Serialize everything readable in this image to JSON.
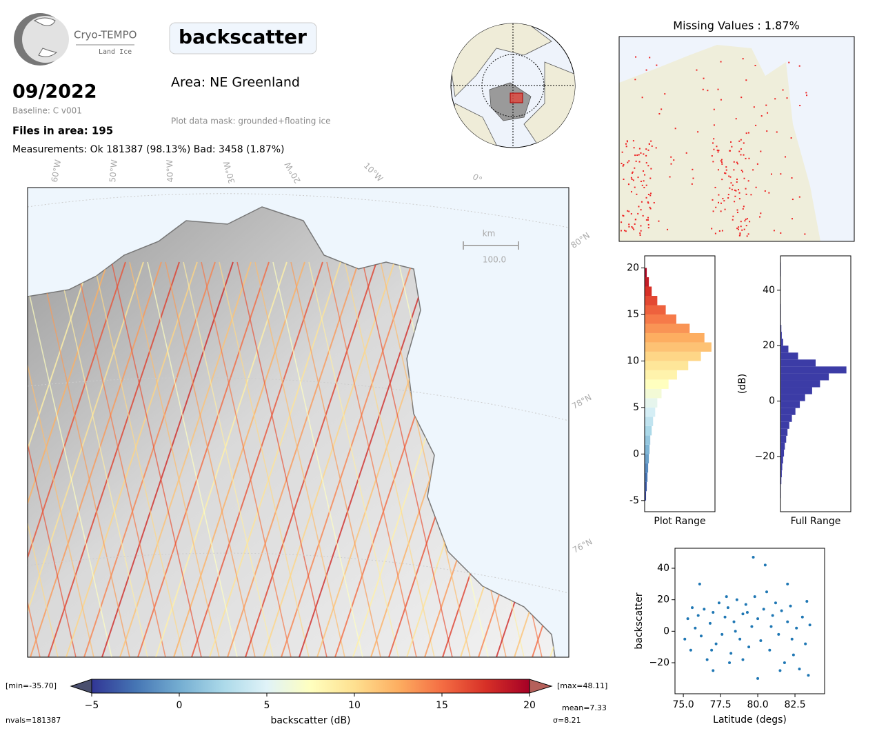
{
  "header": {
    "logo_title": "Cryo-TEMPO",
    "logo_subtitle": "Land Ice",
    "date": "09/2022",
    "baseline": "Baseline: C v001",
    "files": "Files in area: 195",
    "measurements": "Measurements: Ok 181387 (98.13%) Bad: 3458 (1.87%)",
    "title": "backscatter",
    "area": "Area: NE Greenland",
    "mask": "Plot data mask: grounded+floating ice"
  },
  "map": {
    "lon_labels": [
      "60°W",
      "50°W",
      "40°W",
      "30°W",
      "20°W",
      "10°W",
      "0°"
    ],
    "lat_labels": [
      "80°N",
      "78°N",
      "76°N"
    ],
    "scale_unit": "km",
    "scale_value": "100.0"
  },
  "missing_map": {
    "title": "Missing Values : 1.87%"
  },
  "chart_data": [
    {
      "type": "hbar-hist",
      "xlabel": "Plot Range",
      "bins": [
        -5,
        -4,
        -3,
        -2,
        -1,
        0,
        1,
        2,
        3,
        4,
        5,
        6,
        7,
        8,
        9,
        10,
        11,
        12,
        13,
        14,
        15,
        16,
        17,
        18,
        19,
        20
      ],
      "counts": [
        2,
        3,
        4,
        5,
        6,
        7,
        8,
        10,
        12,
        15,
        18,
        24,
        34,
        46,
        62,
        80,
        95,
        85,
        64,
        45,
        30,
        18,
        10,
        6,
        3
      ],
      "xlim": [
        0,
        100
      ],
      "ylim": [
        -6.2,
        21.3
      ],
      "yticks": [
        -5,
        0,
        5,
        10,
        15,
        20
      ],
      "colors": [
        "#313695",
        "#4575b4",
        "#74add1",
        "#abd9e9",
        "#e0f3f8",
        "#ffffbf",
        "#fee090",
        "#fdae61",
        "#f46d43",
        "#d73027",
        "#a50026"
      ]
    },
    {
      "type": "hbar-hist",
      "xlabel": "Full Range",
      "ylabel": "(dB)",
      "color": "#3c3ca6",
      "bins": [
        -35,
        -32.5,
        -30,
        -27.5,
        -25,
        -22.5,
        -20,
        -17.5,
        -15,
        -12.5,
        -10,
        -7.5,
        -5,
        -2.5,
        0,
        2.5,
        5,
        7.5,
        10,
        12.5,
        15,
        17.5,
        20,
        22.5,
        25,
        27.5,
        30,
        32.5,
        35,
        37.5,
        40,
        42.5,
        45,
        47.5,
        50
      ],
      "counts": [
        1,
        1,
        2,
        3,
        4,
        6,
        8,
        10,
        13,
        16,
        20,
        26,
        34,
        44,
        56,
        72,
        90,
        110,
        150,
        80,
        40,
        18,
        6,
        3,
        2,
        1,
        1,
        1,
        0,
        0,
        0,
        0,
        1,
        1
      ],
      "xlim": [
        0,
        160
      ],
      "ylim": [
        -39.9,
        52.4
      ],
      "yticks": [
        {
          "value": -20,
          "label": "−20"
        },
        0,
        20,
        40
      ]
    },
    {
      "type": "scatter",
      "xlabel": "Latitude (degs)",
      "ylabel": "backscatter",
      "color": "#1f77b4",
      "x": [
        75.1,
        75.3,
        75.5,
        75.8,
        76.0,
        76.2,
        76.4,
        76.6,
        76.8,
        77.0,
        77.2,
        77.4,
        77.6,
        77.8,
        78.0,
        78.2,
        78.4,
        78.6,
        78.8,
        79.0,
        79.2,
        79.4,
        79.6,
        79.8,
        80.0,
        80.2,
        80.4,
        80.6,
        80.8,
        81.0,
        81.2,
        81.4,
        81.6,
        81.8,
        82.0,
        82.2,
        82.4,
        82.6,
        82.8,
        83.0,
        83.2,
        83.4,
        83.5,
        79.7,
        80.5,
        76.1,
        82.0,
        77.0,
        80.0,
        78.5,
        79.0,
        81.5,
        75.6,
        83.3,
        77.9,
        80.9,
        79.3,
        82.3,
        76.9,
        78.1
      ],
      "values": [
        -5,
        8,
        -12,
        2,
        10,
        -3,
        14,
        -18,
        5,
        12,
        -8,
        18,
        -2,
        9,
        15,
        -14,
        6,
        20,
        -5,
        11,
        17,
        -10,
        3,
        22,
        8,
        -6,
        14,
        25,
        -12,
        10,
        18,
        -2,
        13,
        -20,
        6,
        16,
        -15,
        2,
        -24,
        9,
        -8,
        -28,
        4,
        47,
        42,
        30,
        30,
        -25,
        -30,
        0,
        -18,
        -25,
        15,
        19,
        22,
        3,
        12,
        -5,
        -12,
        -20
      ],
      "xlim": [
        74.44,
        84.49
      ],
      "ylim": [
        -39.7,
        52.7
      ],
      "xticks": [
        {
          "value": 75,
          "label": "75.0"
        },
        {
          "value": 77.5,
          "label": "77.5"
        },
        {
          "value": 80,
          "label": "80.0"
        },
        {
          "value": 82.5,
          "label": "82.5"
        }
      ],
      "yticks": [
        {
          "value": -20,
          "label": "−20"
        },
        0,
        20,
        40
      ]
    },
    {
      "type": "colorbar",
      "label": "backscatter (dB)",
      "xlim": [
        -5,
        20
      ],
      "xticks": [
        {
          "value": -5,
          "label": "−5"
        },
        0,
        5,
        10,
        15,
        20
      ],
      "colors": [
        "#313695",
        "#4575b4",
        "#74add1",
        "#abd9e9",
        "#e0f3f8",
        "#ffffbf",
        "#fee090",
        "#fdae61",
        "#f46d43",
        "#d73027",
        "#a50026"
      ],
      "under_color": "#4a4f6e",
      "over_color": "#b5605a",
      "min_label": "[min=-35.70]",
      "max_label": "[max=48.11]",
      "mean": "mean=7.33",
      "nvals": "nvals=181387",
      "sigma": "σ=8.21"
    }
  ]
}
